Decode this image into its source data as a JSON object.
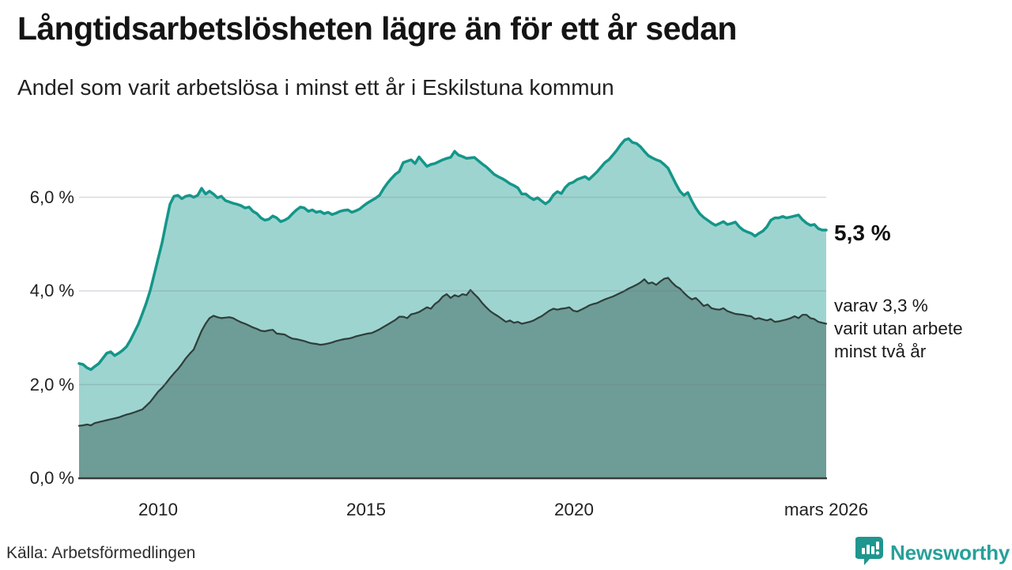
{
  "header": {
    "title": "Långtidsarbetslösheten lägre än för ett år sedan",
    "subtitle": "Andel som varit arbetslösa i minst ett år i Eskilstuna kommun"
  },
  "annotations": {
    "latest_value": "5,3 %",
    "secondary_lines": [
      "varav 3,3 %",
      "varit utan arbete",
      "minst två år"
    ]
  },
  "footer": {
    "source": "Källa: Arbetsförmedlingen",
    "brand": "Newsworthy"
  },
  "colors": {
    "accent_teal_line": "#14968a",
    "light_area_fill": "#9ed4cf",
    "dark_area_fill": "#6e9c96",
    "dark_area_line": "#2e3e3b",
    "grid": "#6f7f88",
    "axis_baseline": "#3b3b3b",
    "brand_teal": "#27a099",
    "text": "#1a1a1a"
  },
  "chart_data": {
    "type": "area",
    "title": "Långtidsarbetslösheten lägre än för ett år sedan",
    "subtitle": "Andel som varit arbetslösa i minst ett år i Eskilstuna kommun",
    "unit": "%",
    "ylim": [
      0,
      7.6
    ],
    "grid": "horizontal",
    "legend": "none (series labelled by annotations at right edge)",
    "x_start_year": 2008.1,
    "x_step_years": 0.0951,
    "x_axis": {
      "ticks": [
        {
          "label": "2010",
          "year": 2010
        },
        {
          "label": "2015",
          "year": 2015
        },
        {
          "label": "2020",
          "year": 2020
        },
        {
          "label": "mars 2026",
          "year": 2026.07
        }
      ]
    },
    "y_axis": {
      "ticks": [
        {
          "label": "0,0 %",
          "value": 0
        },
        {
          "label": "2,0 %",
          "value": 2
        },
        {
          "label": "4,0 %",
          "value": 4
        },
        {
          "label": "6,0 %",
          "value": 6
        }
      ]
    },
    "series": [
      {
        "id": "arbetslosa-minst-ett-ar",
        "name": "Andel arbetslösa i minst ett år",
        "end_label": "5,3 %",
        "latest": 5.3,
        "stroke": "#14968a",
        "fill": "#9ed4cf",
        "stroke_width": 3.5,
        "values": [
          2.45,
          2.43,
          2.36,
          2.32,
          2.39,
          2.45,
          2.56,
          2.67,
          2.7,
          2.62,
          2.67,
          2.73,
          2.81,
          2.95,
          3.12,
          3.29,
          3.51,
          3.74,
          4.01,
          4.35,
          4.69,
          5.03,
          5.45,
          5.85,
          6.02,
          6.04,
          5.97,
          6.02,
          6.04,
          6.0,
          6.04,
          6.19,
          6.07,
          6.13,
          6.07,
          5.99,
          6.02,
          5.93,
          5.9,
          5.87,
          5.85,
          5.82,
          5.77,
          5.79,
          5.7,
          5.65,
          5.56,
          5.51,
          5.53,
          5.6,
          5.56,
          5.48,
          5.51,
          5.56,
          5.65,
          5.73,
          5.79,
          5.77,
          5.7,
          5.73,
          5.68,
          5.7,
          5.65,
          5.68,
          5.63,
          5.66,
          5.7,
          5.72,
          5.73,
          5.68,
          5.71,
          5.75,
          5.82,
          5.88,
          5.93,
          5.98,
          6.04,
          6.18,
          6.3,
          6.4,
          6.49,
          6.55,
          6.74,
          6.77,
          6.8,
          6.72,
          6.86,
          6.76,
          6.66,
          6.7,
          6.72,
          6.76,
          6.8,
          6.83,
          6.85,
          6.98,
          6.9,
          6.87,
          6.83,
          6.84,
          6.85,
          6.78,
          6.71,
          6.65,
          6.57,
          6.49,
          6.44,
          6.4,
          6.35,
          6.29,
          6.25,
          6.2,
          6.07,
          6.07,
          6.0,
          5.95,
          5.99,
          5.92,
          5.86,
          5.92,
          6.05,
          6.12,
          6.08,
          6.21,
          6.29,
          6.32,
          6.38,
          6.41,
          6.44,
          6.38,
          6.46,
          6.54,
          6.64,
          6.74,
          6.8,
          6.9,
          7.0,
          7.12,
          7.22,
          7.25,
          7.17,
          7.15,
          7.08,
          6.98,
          6.89,
          6.84,
          6.8,
          6.77,
          6.7,
          6.62,
          6.45,
          6.28,
          6.13,
          6.04,
          6.1,
          5.92,
          5.77,
          5.65,
          5.57,
          5.51,
          5.45,
          5.4,
          5.44,
          5.48,
          5.42,
          5.44,
          5.47,
          5.37,
          5.3,
          5.26,
          5.23,
          5.17,
          5.23,
          5.28,
          5.37,
          5.51,
          5.56,
          5.56,
          5.59,
          5.56,
          5.58,
          5.6,
          5.62,
          5.52,
          5.45,
          5.4,
          5.42,
          5.33,
          5.3,
          5.3
        ]
      },
      {
        "id": "arbetslosa-minst-tva-ar",
        "name": "varav varit utan arbete minst två år",
        "end_label": "varav 3,3 % varit utan arbete minst två år",
        "latest": 3.3,
        "stroke": "#2e3e3b",
        "fill": "#6e9c96",
        "stroke_width": 2.2,
        "values": [
          1.12,
          1.13,
          1.15,
          1.13,
          1.18,
          1.2,
          1.22,
          1.24,
          1.26,
          1.28,
          1.3,
          1.33,
          1.36,
          1.38,
          1.41,
          1.44,
          1.47,
          1.55,
          1.63,
          1.74,
          1.85,
          1.93,
          2.03,
          2.14,
          2.24,
          2.33,
          2.44,
          2.56,
          2.66,
          2.75,
          2.95,
          3.15,
          3.3,
          3.42,
          3.47,
          3.44,
          3.42,
          3.43,
          3.44,
          3.42,
          3.37,
          3.33,
          3.3,
          3.26,
          3.22,
          3.19,
          3.15,
          3.14,
          3.16,
          3.17,
          3.09,
          3.08,
          3.07,
          3.02,
          2.98,
          2.97,
          2.95,
          2.93,
          2.9,
          2.88,
          2.87,
          2.85,
          2.86,
          2.88,
          2.9,
          2.93,
          2.95,
          2.97,
          2.98,
          3.0,
          3.03,
          3.05,
          3.07,
          3.09,
          3.1,
          3.14,
          3.18,
          3.23,
          3.28,
          3.33,
          3.38,
          3.45,
          3.45,
          3.42,
          3.5,
          3.52,
          3.55,
          3.6,
          3.65,
          3.62,
          3.72,
          3.78,
          3.88,
          3.93,
          3.85,
          3.91,
          3.88,
          3.93,
          3.91,
          4.02,
          3.93,
          3.85,
          3.74,
          3.65,
          3.57,
          3.51,
          3.46,
          3.4,
          3.34,
          3.37,
          3.32,
          3.34,
          3.3,
          3.32,
          3.34,
          3.37,
          3.42,
          3.46,
          3.52,
          3.58,
          3.62,
          3.6,
          3.62,
          3.63,
          3.65,
          3.58,
          3.56,
          3.6,
          3.64,
          3.69,
          3.72,
          3.74,
          3.78,
          3.82,
          3.85,
          3.88,
          3.92,
          3.96,
          4.0,
          4.05,
          4.09,
          4.13,
          4.18,
          4.25,
          4.16,
          4.18,
          4.13,
          4.2,
          4.26,
          4.28,
          4.18,
          4.1,
          4.05,
          3.96,
          3.88,
          3.82,
          3.85,
          3.77,
          3.68,
          3.71,
          3.63,
          3.61,
          3.6,
          3.63,
          3.57,
          3.54,
          3.51,
          3.5,
          3.49,
          3.47,
          3.46,
          3.4,
          3.42,
          3.39,
          3.37,
          3.4,
          3.34,
          3.35,
          3.37,
          3.39,
          3.42,
          3.46,
          3.42,
          3.49,
          3.49,
          3.42,
          3.4,
          3.34,
          3.32,
          3.3
        ]
      }
    ]
  }
}
